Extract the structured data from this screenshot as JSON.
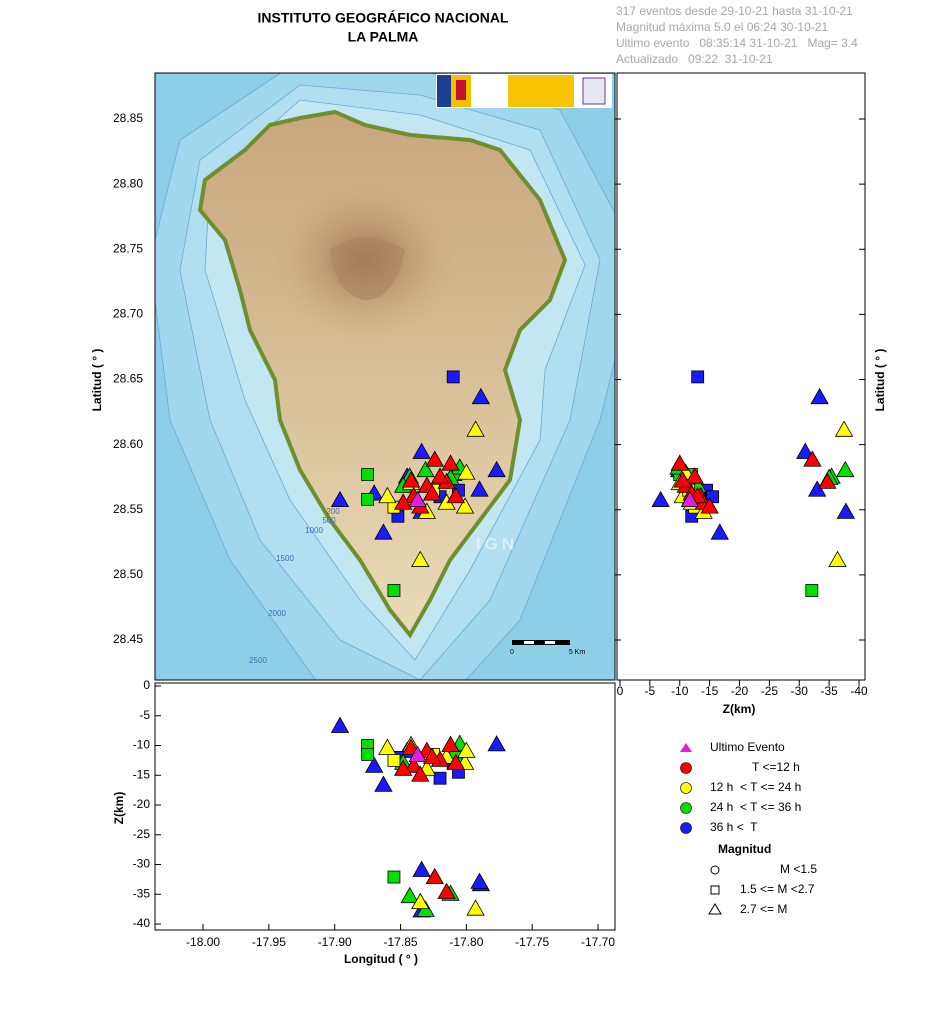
{
  "chart_data": {
    "type": "scatter",
    "title": "INSTITUTO GEOGRÁFICO NACIONAL",
    "subtitle": "LA PALMA",
    "info": [
      "317 eventos desde 29-10-21 hasta 31-10-21",
      "Magnitud máxima 5.0 el 06:24 30-10-21",
      "Ultimo evento   08:35:14 31-10-21   Mag= 3.4",
      "Actualizado   09:22  31-10-21"
    ],
    "xlabel": "Longitud ( ° )",
    "ylabel": "Latitud ( ° )",
    "zlabel": "Z(km)",
    "xlim": [
      -18.0365,
      -17.6871
    ],
    "xticks": [
      {
        "value": -18,
        "label": "-18.00"
      },
      -17.95,
      {
        "value": -17.9,
        "label": "-17.90"
      },
      -17.85,
      {
        "value": -17.8,
        "label": "-17.80"
      },
      -17.75,
      {
        "value": -17.7,
        "label": "-17.70"
      }
    ],
    "ylim": [
      28.4193,
      28.8853
    ],
    "yticks": [
      28.45,
      {
        "value": 28.5,
        "label": "28.50"
      },
      28.55,
      {
        "value": 28.6,
        "label": "28.60"
      },
      28.65,
      {
        "value": 28.7,
        "label": "28.70"
      },
      28.75,
      {
        "value": 28.8,
        "label": "28.80"
      },
      28.85
    ],
    "zlim": [
      0.5,
      -41
    ],
    "zticks": [
      0,
      -5,
      -10,
      -15,
      -20,
      -25,
      -30,
      -35,
      -40
    ],
    "map_labels": [
      "200",
      "500",
      "1000",
      "1500",
      "2000",
      "2500"
    ],
    "watermark": "IGN",
    "scale_labels": [
      "0",
      "5 Km"
    ],
    "series": [
      {
        "name": "Ultimo Evento",
        "color": "#e020e0",
        "legend_marker": "triangle",
        "x": [
          -17.837
        ],
        "y": [
          28.557
        ],
        "z": [
          -11.7
        ],
        "markers": [
          "triangle"
        ]
      },
      {
        "name": "T <=12 h",
        "color": "#ff0000",
        "legend_marker": "circle",
        "x": [
          -17.824,
          -17.815,
          -17.84,
          -17.83,
          -17.82,
          -17.848,
          -17.812,
          -17.835,
          -17.826,
          -17.842,
          -17.808
        ],
        "y": [
          28.588,
          28.571,
          28.56,
          28.568,
          28.575,
          28.555,
          28.585,
          28.552,
          28.562,
          28.572,
          28.56
        ],
        "z": [
          -32.2,
          -34.7,
          -13.5,
          -11,
          -12.5,
          -14,
          -10,
          -15,
          -12,
          -10.5,
          -13
        ],
        "markers": [
          "triangle",
          "triangle",
          "triangle",
          "triangle",
          "triangle",
          "triangle",
          "triangle",
          "triangle",
          "triangle",
          "triangle",
          "triangle"
        ]
      },
      {
        "name": "12 h  < T <= 24 h",
        "color": "#ffff00",
        "legend_marker": "circle",
        "x": [
          -17.793,
          -17.835,
          -17.801,
          -17.8,
          -17.855,
          -17.83,
          -17.842,
          -17.815,
          -17.86,
          -17.825
        ],
        "y": [
          28.611,
          28.511,
          28.552,
          28.578,
          28.552,
          28.548,
          28.57,
          28.555,
          28.56,
          28.565
        ],
        "z": [
          -37.5,
          -36.4,
          -13,
          -11,
          -12.5,
          -14,
          -10,
          -12,
          -10.5,
          -11.5
        ],
        "markers": [
          "triangle",
          "triangle",
          "triangle",
          "triangle",
          "square",
          "triangle",
          "triangle",
          "triangle",
          "triangle",
          "square"
        ]
      },
      {
        "name": "24 h  < T <= 36 h",
        "color": "#00e000",
        "legend_marker": "circle",
        "x": [
          -17.855,
          -17.843,
          -17.831,
          -17.875,
          -17.875,
          -17.808,
          -17.805,
          -17.812,
          -17.848
        ],
        "y": [
          28.488,
          28.575,
          28.58,
          28.577,
          28.558,
          28.577,
          28.582,
          28.574,
          28.568
        ],
        "z": [
          -32.1,
          -35.4,
          -37.7,
          -10,
          -11.5,
          -12,
          -9.8,
          -35,
          -13
        ],
        "markers": [
          "square",
          "triangle",
          "triangle",
          "square",
          "square",
          "square",
          "triangle",
          "triangle",
          "triangle"
        ]
      },
      {
        "name": "36 h <  T",
        "color": "#1a1aff",
        "legend_marker": "circle",
        "x": [
          -17.81,
          -17.789,
          -17.777,
          -17.896,
          -17.863,
          -17.834,
          -17.79,
          -17.834,
          -17.806,
          -17.845,
          -17.87,
          -17.82,
          -17.852
        ],
        "y": [
          28.652,
          28.636,
          28.58,
          28.557,
          28.532,
          28.594,
          28.565,
          28.548,
          28.565,
          28.575,
          28.562,
          28.56,
          28.545
        ],
        "z": [
          -13,
          -33.4,
          -9.9,
          -6.8,
          -16.7,
          -31,
          -33,
          -37.8,
          -14.5,
          -11,
          -13.5,
          -15.5,
          -12
        ],
        "markers": [
          "square",
          "triangle",
          "triangle",
          "triangle",
          "triangle",
          "triangle",
          "triangle",
          "triangle",
          "square",
          "triangle",
          "triangle",
          "square",
          "square"
        ]
      }
    ],
    "magnitude_legend": {
      "title": "Magnitud",
      "entries": [
        {
          "label": "M <1.5",
          "marker": "circle"
        },
        {
          "label": "1.5 <= M <2.7",
          "marker": "square"
        },
        {
          "label": "2.7 <= M",
          "marker": "triangle"
        }
      ]
    }
  }
}
